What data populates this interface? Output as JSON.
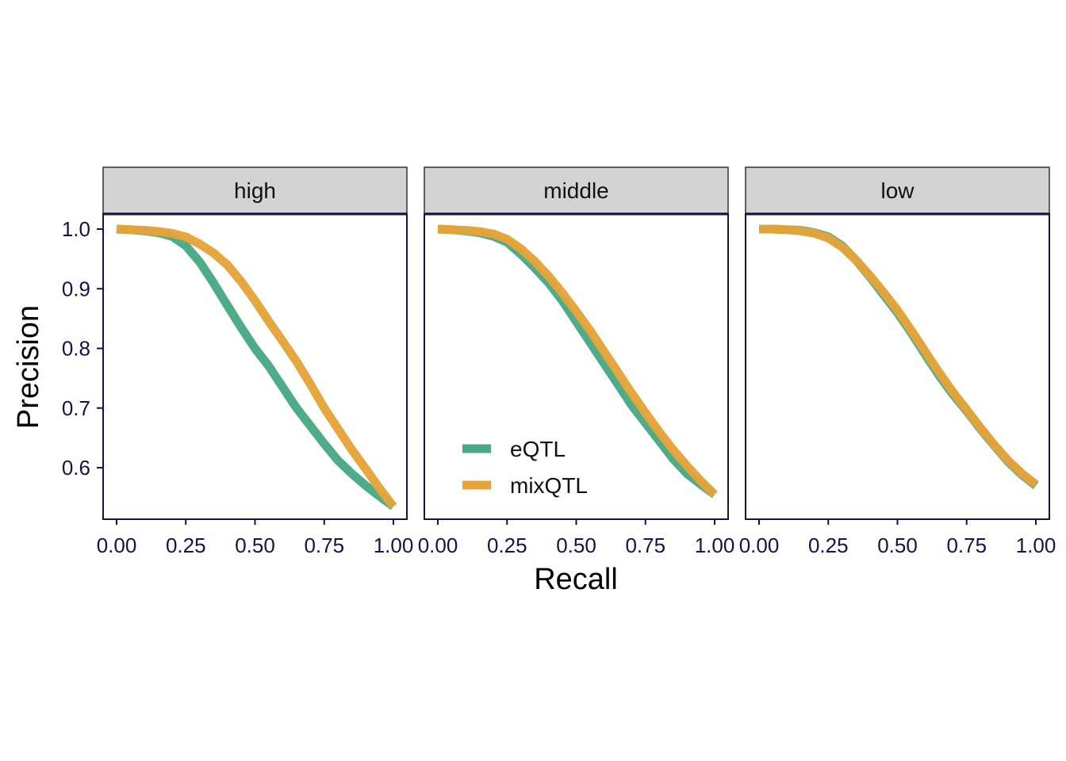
{
  "colors": {
    "eQTL": "#49a986",
    "mixQTL": "#e5a33a",
    "strip_fill": "#d3d3d3",
    "axis": "#1a1147"
  },
  "chart_data": {
    "type": "line",
    "xlabel": "Recall",
    "ylabel": "Precision",
    "xlim": [
      0,
      1
    ],
    "ylim": [
      0.535,
      1.0
    ],
    "x_ticks": [
      "0.00",
      "0.25",
      "0.50",
      "0.75",
      "1.00"
    ],
    "y_ticks": [
      "0.6",
      "0.7",
      "0.8",
      "0.9",
      "1.0"
    ],
    "grid": false,
    "legend": {
      "placement": "inside middle panel, bottom-left",
      "entries": [
        "eQTL",
        "mixQTL"
      ]
    },
    "panels": [
      {
        "label": "high",
        "x": [
          0.0,
          0.05,
          0.1,
          0.15,
          0.2,
          0.25,
          0.3,
          0.35,
          0.4,
          0.45,
          0.5,
          0.55,
          0.6,
          0.65,
          0.7,
          0.75,
          0.8,
          0.85,
          0.9,
          0.95,
          1.0
        ],
        "series": [
          {
            "name": "eQTL",
            "values": [
              1.0,
              0.999,
              0.997,
              0.994,
              0.988,
              0.972,
              0.945,
              0.91,
              0.872,
              0.835,
              0.8,
              0.77,
              0.735,
              0.7,
              0.67,
              0.64,
              0.612,
              0.59,
              0.57,
              0.552,
              0.535
            ]
          },
          {
            "name": "mixQTL",
            "values": [
              1.0,
              0.999,
              0.998,
              0.996,
              0.993,
              0.987,
              0.975,
              0.96,
              0.94,
              0.912,
              0.88,
              0.845,
              0.812,
              0.778,
              0.74,
              0.7,
              0.665,
              0.63,
              0.598,
              0.565,
              0.535
            ]
          }
        ]
      },
      {
        "label": "middle",
        "x": [
          0.0,
          0.05,
          0.1,
          0.15,
          0.2,
          0.25,
          0.3,
          0.35,
          0.4,
          0.45,
          0.5,
          0.55,
          0.6,
          0.65,
          0.7,
          0.75,
          0.8,
          0.85,
          0.9,
          0.95,
          1.0
        ],
        "series": [
          {
            "name": "eQTL",
            "values": [
              1.0,
              0.999,
              0.997,
              0.994,
              0.988,
              0.978,
              0.958,
              0.935,
              0.91,
              0.88,
              0.845,
              0.81,
              0.775,
              0.74,
              0.705,
              0.675,
              0.645,
              0.615,
              0.59,
              0.572,
              0.555
            ]
          },
          {
            "name": "mixQTL",
            "values": [
              1.0,
              0.999,
              0.998,
              0.996,
              0.992,
              0.983,
              0.967,
              0.946,
              0.921,
              0.893,
              0.862,
              0.83,
              0.795,
              0.76,
              0.725,
              0.692,
              0.66,
              0.63,
              0.603,
              0.578,
              0.555
            ]
          }
        ]
      },
      {
        "label": "low",
        "x": [
          0.0,
          0.05,
          0.1,
          0.15,
          0.2,
          0.25,
          0.3,
          0.35,
          0.4,
          0.45,
          0.5,
          0.55,
          0.6,
          0.65,
          0.7,
          0.75,
          0.8,
          0.85,
          0.9,
          0.95,
          1.0
        ],
        "series": [
          {
            "name": "eQTL",
            "values": [
              1.0,
              1.0,
              0.999,
              0.998,
              0.994,
              0.987,
              0.972,
              0.948,
              0.92,
              0.89,
              0.86,
              0.826,
              0.79,
              0.755,
              0.723,
              0.695,
              0.665,
              0.637,
              0.61,
              0.588,
              0.57
            ]
          },
          {
            "name": "mixQTL",
            "values": [
              1.0,
              1.0,
              0.999,
              0.997,
              0.993,
              0.985,
              0.97,
              0.948,
              0.922,
              0.894,
              0.864,
              0.83,
              0.795,
              0.76,
              0.727,
              0.697,
              0.667,
              0.638,
              0.612,
              0.59,
              0.572
            ]
          }
        ]
      }
    ]
  }
}
